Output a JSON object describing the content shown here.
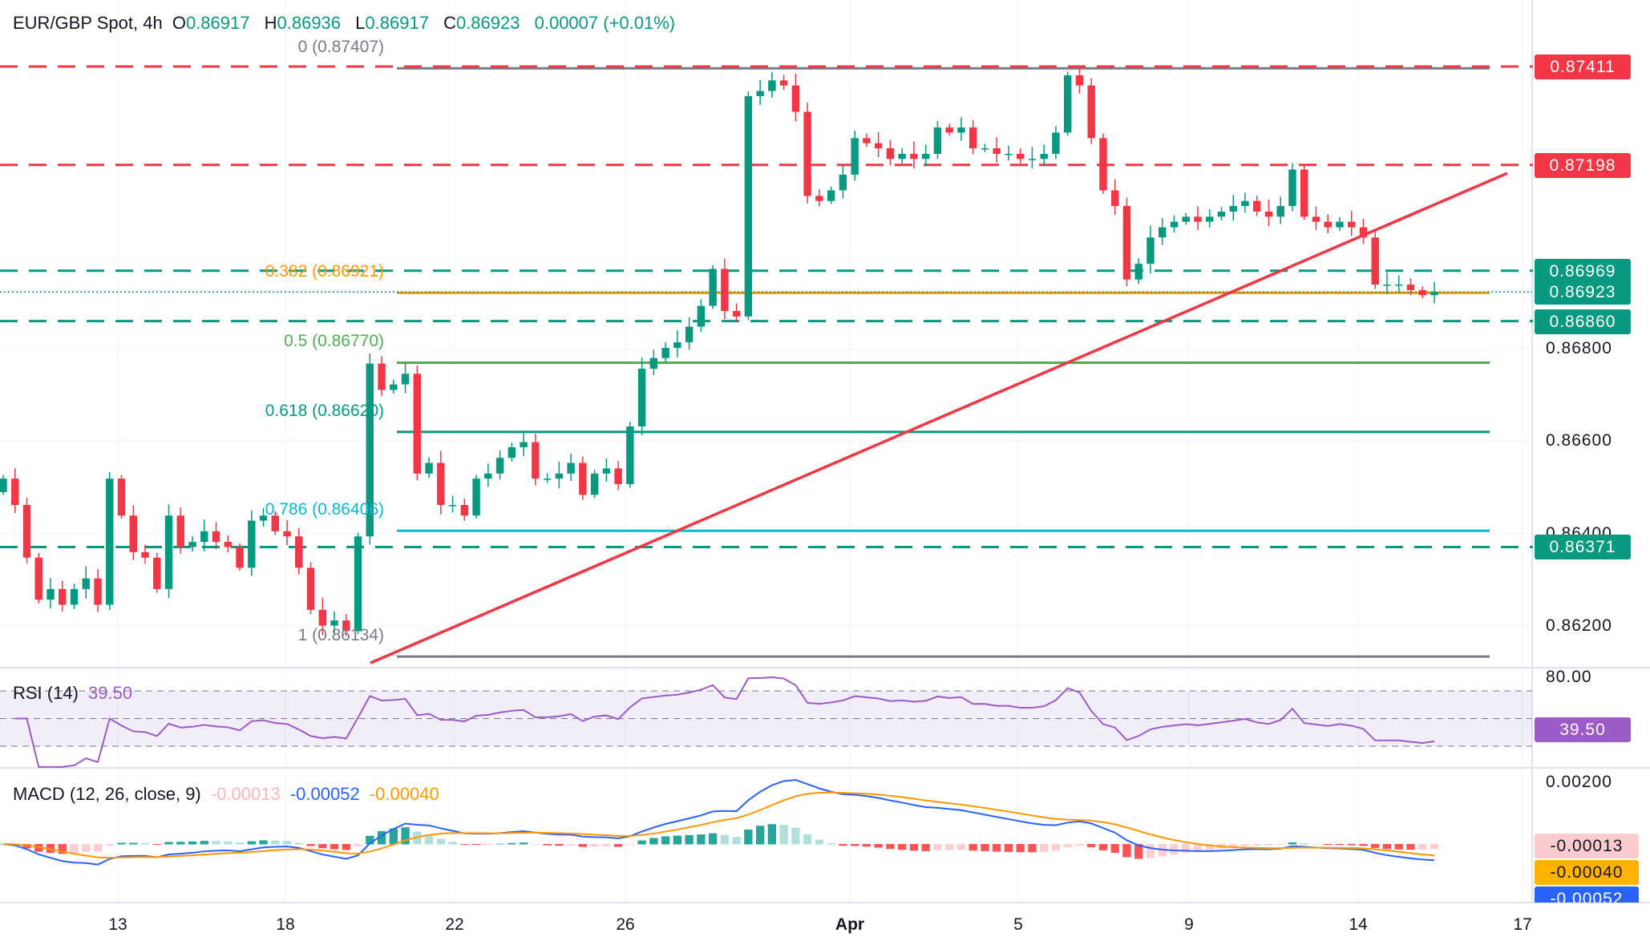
{
  "header": {
    "symbol": "EUR/GBP Spot, 4h",
    "o_label": "O",
    "o": "0.86917",
    "h_label": "H",
    "h": "0.86936",
    "l_label": "L",
    "l": "0.86917",
    "c_label": "C",
    "c": "0.86923",
    "change": "0.00007 (+0.01%)"
  },
  "colors": {
    "up": "#089981",
    "down": "#f23645",
    "red_line": "#f23645",
    "green_line": "#089981",
    "rsi": "#9c5bc6",
    "macd": "#2962ff",
    "signal": "#ff9800"
  },
  "rsi": {
    "title": "RSI (14)",
    "value": "39.50",
    "axis_label": "80.00",
    "levels": [
      70,
      50,
      30
    ]
  },
  "macd": {
    "title": "MACD (12, 26, close, 9)",
    "hist": "-0.00013",
    "macd": "-0.00052",
    "signal": "-0.00040",
    "axis_label": "0.00200"
  },
  "chart_data": {
    "type": "candlestick",
    "title": "EUR/GBP Spot, 4h",
    "first_open": 0.8649,
    "closes": [
      0.86519,
      0.86462,
      0.86348,
      0.86257,
      0.8628,
      0.86246,
      0.8628,
      0.86303,
      0.86246,
      0.86519,
      0.86439,
      0.8636,
      0.86348,
      0.8628,
      0.86439,
      0.86371,
      0.86382,
      0.86405,
      0.86382,
      0.86371,
      0.86326,
      0.86428,
      0.86439,
      0.86405,
      0.86394,
      0.86326,
      0.86235,
      0.86201,
      0.86212,
      0.86189,
      0.86394,
      0.86768,
      0.86711,
      0.86723,
      0.86746,
      0.8653,
      0.86553,
      0.86462,
      0.86462,
      0.86439,
      0.86519,
      0.8653,
      0.86564,
      0.86587,
      0.86598,
      0.86519,
      0.86519,
      0.8653,
      0.86553,
      0.86484,
      0.8653,
      0.86541,
      0.86507,
      0.86632,
      0.86757,
      0.8678,
      0.86802,
      0.86814,
      0.86848,
      0.86893,
      0.86973,
      0.86882,
      0.8687,
      0.87347,
      0.87358,
      0.87381,
      0.8737,
      0.87313,
      0.87131,
      0.8712,
      0.87143,
      0.87177,
      0.87256,
      0.87245,
      0.87234,
      0.87211,
      0.87222,
      0.87211,
      0.87222,
      0.87279,
      0.87268,
      0.87279,
      0.87234,
      0.87234,
      0.87222,
      0.87222,
      0.87211,
      0.87211,
      0.87222,
      0.87268,
      0.87392,
      0.8737,
      0.87256,
      0.87143,
      0.87109,
      0.8695,
      0.86984,
      0.87041,
      0.87063,
      0.87075,
      0.87086,
      0.87075,
      0.87086,
      0.87097,
      0.87109,
      0.8712,
      0.87097,
      0.87086,
      0.87109,
      0.87188,
      0.87086,
      0.87075,
      0.87063,
      0.87075,
      0.87063,
      0.87041,
      0.86939,
      0.86939,
      0.86939,
      0.86927,
      0.86916,
      0.86923
    ],
    "price_ticks": [
      "0.86800",
      "0.86600",
      "0.86400",
      "0.86200"
    ],
    "price_tick_values": [
      0.868,
      0.866,
      0.864,
      0.862
    ],
    "x_labels": [
      "13",
      "18",
      "22",
      "26",
      "Apr",
      "5",
      "9",
      "14",
      "17"
    ],
    "levels": [
      {
        "price": 0.87411,
        "label": "0.87411",
        "kind": "resistance"
      },
      {
        "price": 0.87198,
        "label": "0.87198",
        "kind": "resistance"
      },
      {
        "price": 0.86969,
        "label": "0.86969",
        "kind": "support"
      },
      {
        "price": 0.8686,
        "label": "0.86860",
        "kind": "support"
      },
      {
        "price": 0.86371,
        "label": "0.86371",
        "kind": "support"
      }
    ],
    "current_price": {
      "price": 0.86923,
      "label": "0.86923"
    },
    "fib": [
      {
        "price": 0.87407,
        "label": "0 (0.87407)",
        "color": "#787b86"
      },
      {
        "price": 0.86921,
        "label": "0.382 (0.86921)",
        "color": "#ff9800"
      },
      {
        "price": 0.8677,
        "label": "0.5 (0.86770)",
        "color": "#4caf50"
      },
      {
        "price": 0.8662,
        "label": "0.618 (0.86620)",
        "color": "#089981"
      },
      {
        "price": 0.86406,
        "label": "0.786 (0.86406)",
        "color": "#00bcd4"
      },
      {
        "price": 0.86134,
        "label": "1 (0.86134)",
        "color": "#787b86"
      }
    ],
    "trendline": {
      "from_price": 0.8612,
      "to_price": 0.8718
    }
  }
}
